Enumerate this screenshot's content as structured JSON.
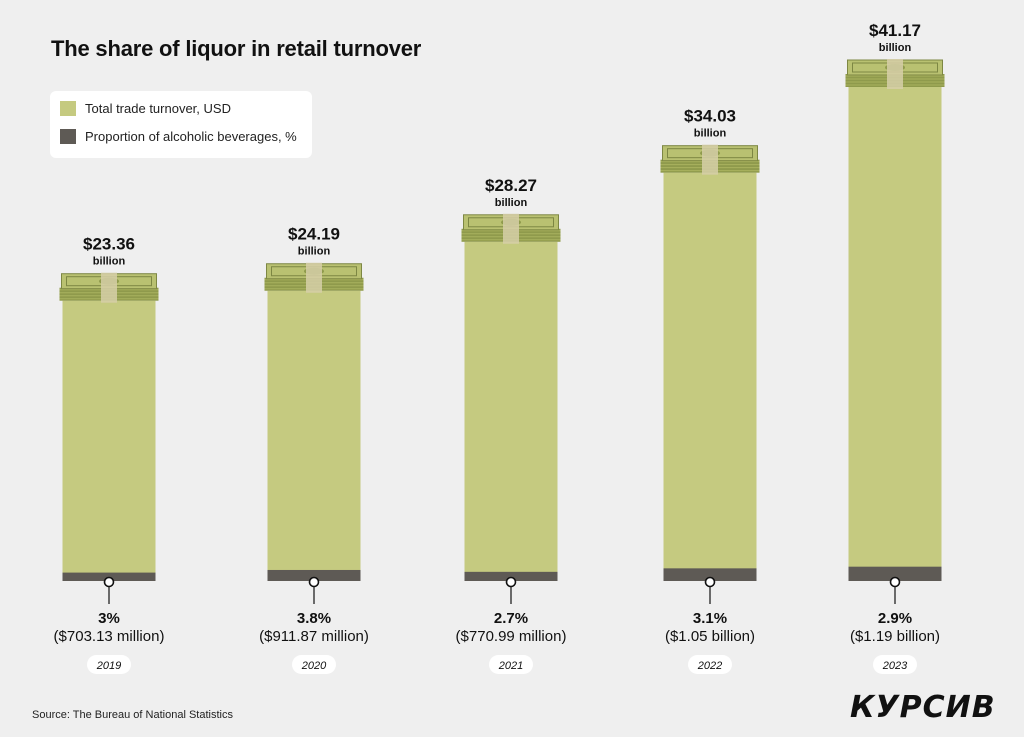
{
  "title": "The share of liquor in retail turnover",
  "legend": {
    "items": [
      {
        "label": "Total trade turnover, USD",
        "color": "#c5ca80"
      },
      {
        "label": "Proportion of alcoholic beverages, %",
        "color": "#5e5a55"
      }
    ]
  },
  "source": "Source: The Bureau of National Statistics",
  "logo": "КУРСИВ",
  "chart_data": {
    "type": "bar",
    "title": "The share of liquor in retail turnover",
    "categories": [
      "2019",
      "2020",
      "2021",
      "2022",
      "2023"
    ],
    "series": [
      {
        "name": "Total trade turnover, USD",
        "unit": "billion USD",
        "values": [
          23.36,
          24.19,
          28.27,
          34.03,
          41.17
        ],
        "color": "#c5ca80"
      },
      {
        "name": "Proportion of alcoholic beverages, %",
        "unit": "%",
        "values": [
          3,
          3.8,
          2.7,
          3.1,
          2.9
        ],
        "color": "#5e5a55"
      }
    ],
    "value_labels": [
      "$23.36",
      "$24.19",
      "$28.27",
      "$34.03",
      "$41.17"
    ],
    "value_units": [
      "billion",
      "billion",
      "billion",
      "billion",
      "billion"
    ],
    "share_labels": [
      "3%",
      "3.8%",
      "2.7%",
      "3.1%",
      "2.9%"
    ],
    "amount_labels": [
      "($703.13 million)",
      "($911.87 million)",
      "($770.99 million)",
      "($1.05 billion)",
      "($1.19 billion)"
    ],
    "ylim": [
      0,
      45
    ],
    "grid": false,
    "legend_position": "top-left"
  }
}
